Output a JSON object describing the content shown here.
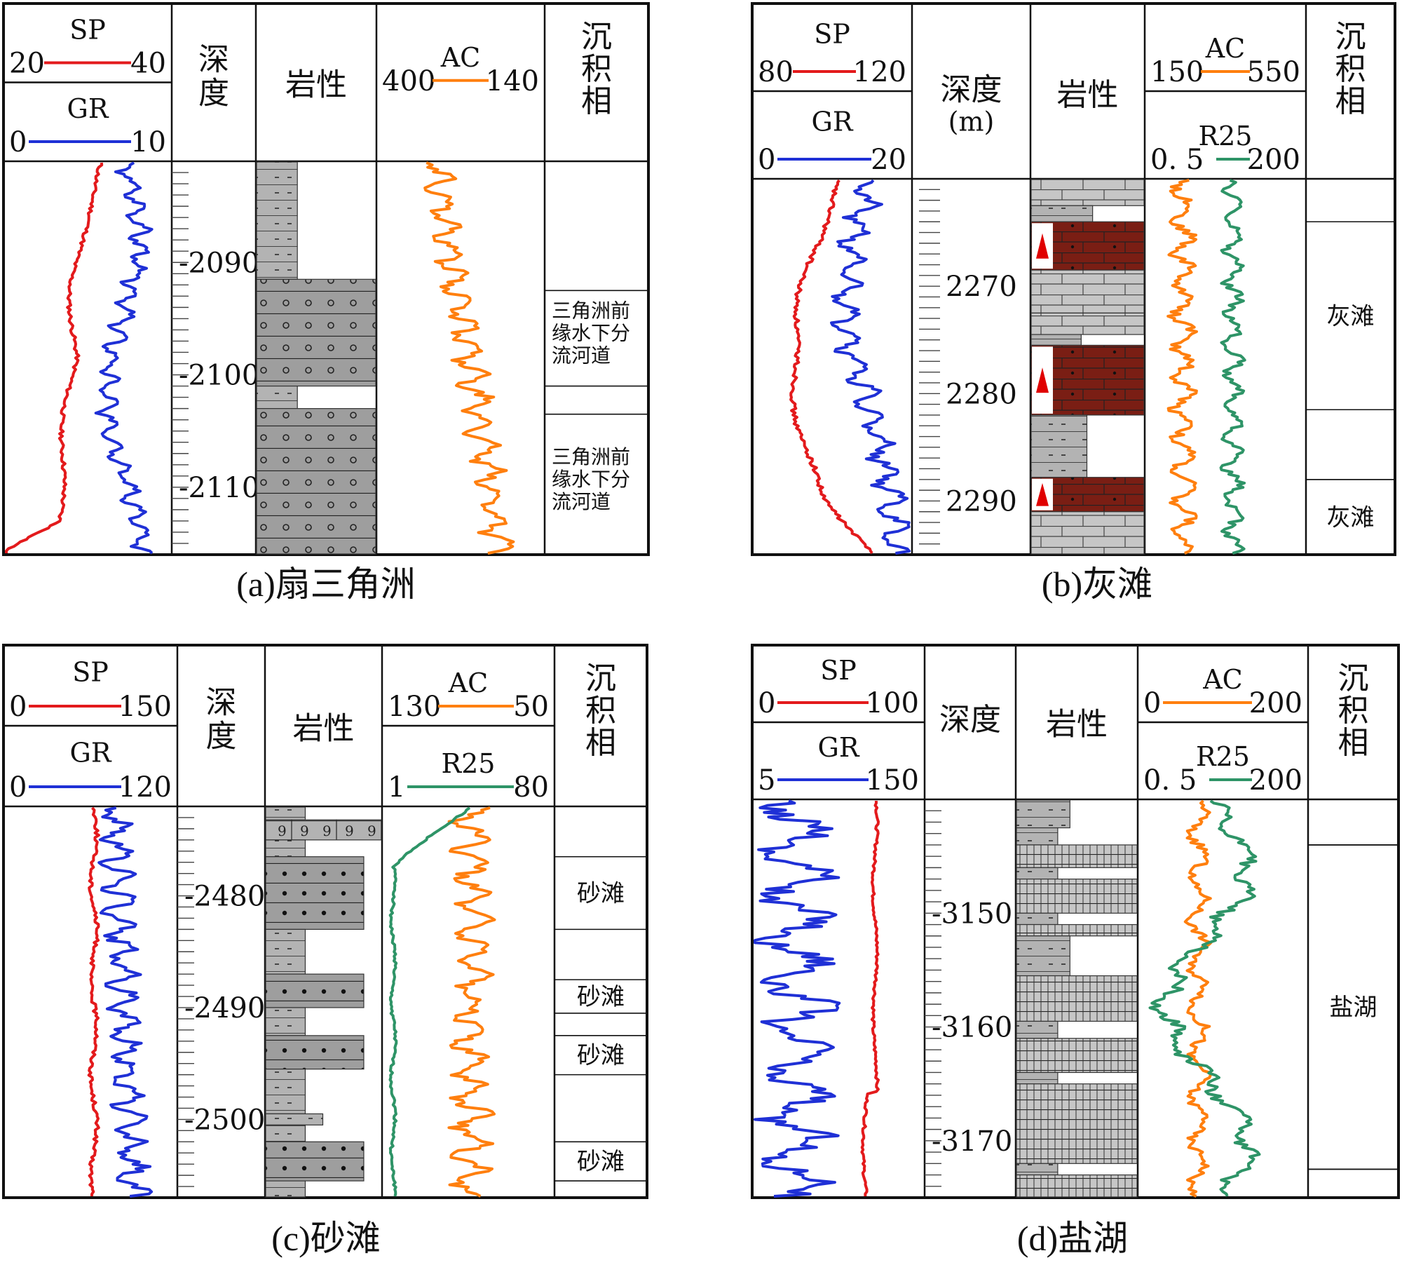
{
  "colors": {
    "sp": "#e31a1c",
    "gr": "#1f30d6",
    "ac": "#ff7f0e",
    "r25": "#2e9467",
    "rock_gray": "#9e9e9e",
    "rock_light": "#c4c4c4",
    "limestone_red": "#7a1e14",
    "border": "#111111"
  },
  "panels": [
    {
      "id": "a",
      "caption": "(a)扇三角洲",
      "depth_title": "深度",
      "lith_title": "岩性",
      "facies_title": "沉积相",
      "logs_left": [
        {
          "name": "SP",
          "min": "20",
          "max": "40",
          "color": "sp"
        },
        {
          "name": "GR",
          "min": "0",
          "max": "10",
          "color": "gr"
        }
      ],
      "logs_right": [
        {
          "name": "AC",
          "min": "400",
          "max": "140",
          "color": "ac"
        }
      ],
      "depth_range": [
        2081,
        2116
      ],
      "depth_labels": [
        "2090",
        "2100",
        "2110"
      ],
      "facies": [
        {
          "label": "三角洲前缘水下分流河道",
          "from": 2092.5,
          "to": 2101
        },
        {
          "label": "三角洲前缘水下分流河道",
          "from": 2103.5,
          "to": 2116
        }
      ],
      "lithology": [
        {
          "from": 2081,
          "to": 2091.5,
          "type": "mudstone",
          "width": 0.35
        },
        {
          "from": 2091.5,
          "to": 2101,
          "type": "sandstone",
          "width": 1.0
        },
        {
          "from": 2101,
          "to": 2103,
          "type": "mudstone",
          "width": 0.35
        },
        {
          "from": 2103,
          "to": 2116,
          "type": "sandstone",
          "width": 1.0
        }
      ]
    },
    {
      "id": "b",
      "caption": "(b)灰滩",
      "depth_title": "深度",
      "depth_unit": "(m)",
      "lith_title": "岩性",
      "facies_title": "沉积相",
      "logs_left": [
        {
          "name": "SP",
          "min": "80",
          "max": "120",
          "color": "sp"
        },
        {
          "name": "GR",
          "min": "0",
          "max": "20",
          "color": "gr"
        }
      ],
      "logs_right": [
        {
          "name": "AC",
          "min": "150",
          "max": "550",
          "color": "ac"
        },
        {
          "name": "R25",
          "min": "0. 5",
          "max": "200",
          "color": "r25"
        }
      ],
      "depth_range": [
        2260,
        2295
      ],
      "depth_labels": [
        "2270",
        "2280",
        "2290"
      ],
      "facies": [
        {
          "label": "",
          "from": 2260,
          "to": 2264
        },
        {
          "label": "灰滩",
          "from": 2264,
          "to": 2281.5
        },
        {
          "label": "",
          "from": 2281.5,
          "to": 2288
        },
        {
          "label": "灰滩",
          "from": 2288,
          "to": 2295
        }
      ],
      "lithology": [
        {
          "from": 2260,
          "to": 2262.5,
          "type": "limestone",
          "width": 1.0
        },
        {
          "from": 2262.5,
          "to": 2264,
          "type": "mudstone",
          "width": 0.55
        },
        {
          "from": 2264,
          "to": 2268.5,
          "type": "red_limestone",
          "width": 1.0
        },
        {
          "from": 2268.5,
          "to": 2272.5,
          "type": "limestone",
          "width": 1.0
        },
        {
          "from": 2272.5,
          "to": 2274.5,
          "type": "limestone",
          "width": 1.0
        },
        {
          "from": 2274.5,
          "to": 2275.5,
          "type": "mudstone",
          "width": 0.45
        },
        {
          "from": 2275.5,
          "to": 2282,
          "type": "red_limestone",
          "width": 1.0
        },
        {
          "from": 2282,
          "to": 2287.8,
          "type": "mudstone",
          "width": 0.5
        },
        {
          "from": 2287.8,
          "to": 2291,
          "type": "red_limestone",
          "width": 1.0
        },
        {
          "from": 2291,
          "to": 2295,
          "type": "limestone",
          "width": 1.0
        }
      ]
    },
    {
      "id": "c",
      "caption": "(c)砂滩",
      "depth_title": "深度",
      "lith_title": "岩性",
      "facies_title": "沉积相",
      "logs_left": [
        {
          "name": "SP",
          "min": "0",
          "max": "150",
          "color": "sp"
        },
        {
          "name": "GR",
          "min": "0",
          "max": "120",
          "color": "gr"
        }
      ],
      "logs_right": [
        {
          "name": "AC",
          "min": "130",
          "max": "50",
          "color": "ac"
        },
        {
          "name": "R25",
          "min": "1",
          "max": "80",
          "color": "r25"
        }
      ],
      "depth_range": [
        2472,
        2507
      ],
      "depth_labels": [
        "2480",
        "2490",
        "2500"
      ],
      "facies": [
        {
          "label": "砂滩",
          "from": 2476.5,
          "to": 2483
        },
        {
          "label": "砂滩",
          "from": 2487.5,
          "to": 2490.5
        },
        {
          "label": "砂滩",
          "from": 2492.5,
          "to": 2496
        },
        {
          "label": "砂滩",
          "from": 2502,
          "to": 2505.5
        }
      ],
      "lithology": [
        {
          "from": 2472,
          "to": 2473.2,
          "type": "mudstone",
          "width": 0.35
        },
        {
          "from": 2473.2,
          "to": 2475,
          "type": "bioclast",
          "width": 1.0
        },
        {
          "from": 2475,
          "to": 2476.5,
          "type": "mudstone",
          "width": 0.35
        },
        {
          "from": 2476.5,
          "to": 2483,
          "type": "sandstone_dots",
          "width": 0.85
        },
        {
          "from": 2483,
          "to": 2487,
          "type": "mudstone",
          "width": 0.35
        },
        {
          "from": 2487,
          "to": 2490,
          "type": "sandstone_dots",
          "width": 0.85
        },
        {
          "from": 2490,
          "to": 2492.5,
          "type": "mudstone",
          "width": 0.35
        },
        {
          "from": 2492.5,
          "to": 2495.5,
          "type": "sandstone_dots",
          "width": 0.85
        },
        {
          "from": 2495.5,
          "to": 2499.5,
          "type": "mudstone",
          "width": 0.35
        },
        {
          "from": 2499.5,
          "to": 2500.5,
          "type": "mudstone",
          "width": 0.5
        },
        {
          "from": 2500.5,
          "to": 2502,
          "type": "mudstone",
          "width": 0.35
        },
        {
          "from": 2502,
          "to": 2505.5,
          "type": "sandstone_dots",
          "width": 0.85
        },
        {
          "from": 2505.5,
          "to": 2507,
          "type": "mudstone",
          "width": 0.35
        }
      ]
    },
    {
      "id": "d",
      "caption": "(d)盐湖",
      "depth_title": "深度",
      "lith_title": "岩性",
      "facies_title": "沉积相",
      "logs_left": [
        {
          "name": "SP",
          "min": "0",
          "max": "100",
          "color": "sp"
        },
        {
          "name": "GR",
          "min": "5",
          "max": "150",
          "color": "gr"
        }
      ],
      "logs_right": [
        {
          "name": "AC",
          "min": "0",
          "max": "200",
          "color": "ac"
        },
        {
          "name": "R25",
          "min": "0. 5",
          "max": "200",
          "color": "r25"
        }
      ],
      "depth_range": [
        3140,
        3175
      ],
      "depth_labels": [
        "3150",
        "3160",
        "3170"
      ],
      "facies": [
        {
          "label": "",
          "from": 3140,
          "to": 3144
        },
        {
          "label": "盐湖",
          "from": 3144,
          "to": 3172.5
        },
        {
          "label": "",
          "from": 3172.5,
          "to": 3175
        }
      ],
      "lithology": [
        {
          "from": 3140,
          "to": 3142.5,
          "type": "mudstone",
          "width": 0.45
        },
        {
          "from": 3142.5,
          "to": 3144,
          "type": "salt_mud",
          "width": 0.35
        },
        {
          "from": 3144,
          "to": 3146,
          "type": "salt",
          "width": 1.0
        },
        {
          "from": 3146,
          "to": 3147,
          "type": "salt_mud",
          "width": 0.35
        },
        {
          "from": 3147,
          "to": 3150,
          "type": "salt",
          "width": 1.0
        },
        {
          "from": 3150,
          "to": 3151,
          "type": "salt_mud",
          "width": 0.35
        },
        {
          "from": 3151,
          "to": 3152,
          "type": "salt",
          "width": 1.0
        },
        {
          "from": 3152,
          "to": 3155.5,
          "type": "mudstone",
          "width": 0.45
        },
        {
          "from": 3155.5,
          "to": 3159.5,
          "type": "salt",
          "width": 1.0
        },
        {
          "from": 3159.5,
          "to": 3161,
          "type": "salt_mud",
          "width": 0.35
        },
        {
          "from": 3161,
          "to": 3164,
          "type": "salt",
          "width": 1.0
        },
        {
          "from": 3164,
          "to": 3165,
          "type": "salt_mud",
          "width": 0.35
        },
        {
          "from": 3165,
          "to": 3172,
          "type": "salt",
          "width": 1.0
        },
        {
          "from": 3172,
          "to": 3173,
          "type": "salt_mud",
          "width": 0.35
        },
        {
          "from": 3173,
          "to": 3175,
          "type": "salt",
          "width": 1.0
        }
      ]
    }
  ]
}
